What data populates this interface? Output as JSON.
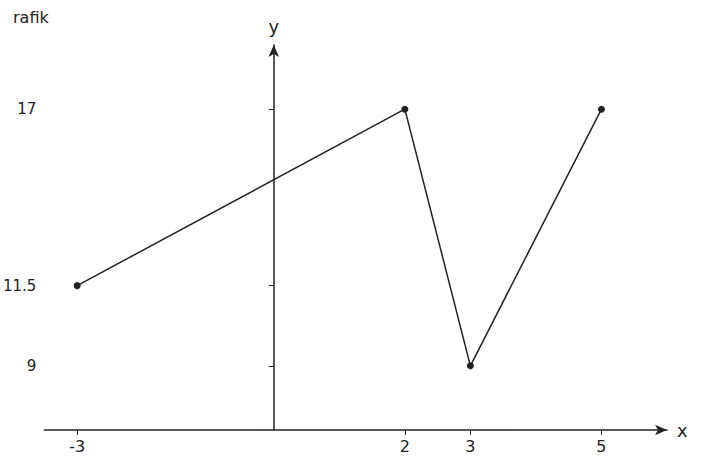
{
  "chart_data": {
    "type": "line",
    "title": "rafik",
    "x_label": "x",
    "y_label": "y",
    "x": [
      -3,
      2,
      3,
      5
    ],
    "values": [
      11.5,
      17,
      9,
      17
    ],
    "color": "#222222",
    "marker": "circle",
    "line_style": "solid",
    "xlim": [
      -3.5,
      6
    ],
    "xticks": [
      -3,
      2,
      3,
      5
    ],
    "ylim": [
      7,
      19
    ],
    "yticks": [
      9,
      11.5,
      17
    ],
    "grid": false
  }
}
